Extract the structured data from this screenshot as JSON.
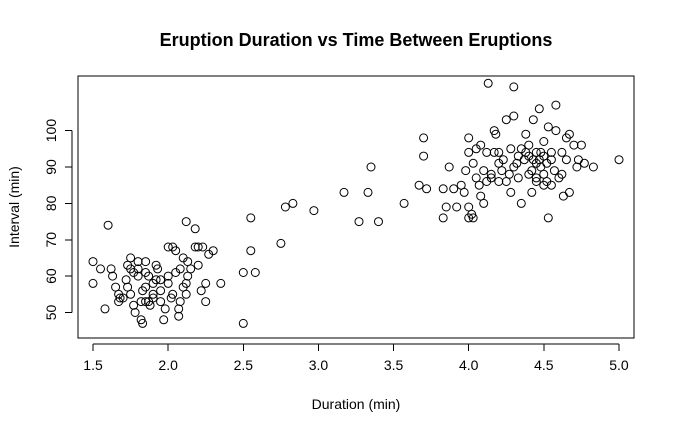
{
  "chart_data": {
    "type": "scatter",
    "title": "Eruption Duration vs Time Between Eruptions",
    "xlabel": "Duration (min)",
    "ylabel": "Interval (min)",
    "xlim": [
      1.4,
      5.1
    ],
    "ylim": [
      43,
      115
    ],
    "x_ticks": [
      1.5,
      2.0,
      2.5,
      3.0,
      3.5,
      4.0,
      4.5,
      5.0
    ],
    "x_tick_labels": [
      "1.5",
      "2.0",
      "2.5",
      "3.0",
      "3.5",
      "4.0",
      "4.5",
      "5.0"
    ],
    "y_ticks": [
      50,
      60,
      70,
      80,
      90,
      100
    ],
    "y_tick_labels": [
      "50",
      "60",
      "70",
      "80",
      "90",
      "100"
    ],
    "grid": false,
    "legend": "none",
    "marker": "open-circle",
    "points": [
      [
        1.5,
        64
      ],
      [
        1.5,
        58
      ],
      [
        1.55,
        62
      ],
      [
        1.58,
        51
      ],
      [
        1.6,
        74
      ],
      [
        1.62,
        62
      ],
      [
        1.63,
        60
      ],
      [
        1.65,
        57
      ],
      [
        1.67,
        55
      ],
      [
        1.67,
        53
      ],
      [
        1.68,
        54
      ],
      [
        1.7,
        54
      ],
      [
        1.72,
        59
      ],
      [
        1.73,
        57
      ],
      [
        1.75,
        65
      ],
      [
        1.75,
        62
      ],
      [
        1.75,
        55
      ],
      [
        1.77,
        61
      ],
      [
        1.77,
        52
      ],
      [
        1.78,
        50
      ],
      [
        1.8,
        64
      ],
      [
        1.8,
        62
      ],
      [
        1.8,
        60
      ],
      [
        1.82,
        53
      ],
      [
        1.82,
        48
      ],
      [
        1.83,
        47
      ],
      [
        1.83,
        56
      ],
      [
        1.85,
        64
      ],
      [
        1.85,
        61
      ],
      [
        1.85,
        57
      ],
      [
        1.87,
        60
      ],
      [
        1.87,
        53
      ],
      [
        1.88,
        52
      ],
      [
        1.9,
        58
      ],
      [
        1.9,
        54
      ],
      [
        1.92,
        59
      ],
      [
        1.92,
        63
      ],
      [
        1.93,
        62
      ],
      [
        1.95,
        56
      ],
      [
        1.95,
        53
      ],
      [
        1.97,
        48
      ],
      [
        1.98,
        51
      ],
      [
        2.0,
        58
      ],
      [
        2.0,
        60
      ],
      [
        2.02,
        54
      ],
      [
        2.03,
        55
      ],
      [
        2.03,
        68
      ],
      [
        2.05,
        67
      ],
      [
        2.05,
        61
      ],
      [
        2.07,
        49
      ],
      [
        2.08,
        53
      ],
      [
        2.08,
        62
      ],
      [
        2.1,
        57
      ],
      [
        2.1,
        65
      ],
      [
        2.12,
        58
      ],
      [
        2.12,
        55
      ],
      [
        2.13,
        64
      ],
      [
        2.13,
        60
      ],
      [
        2.15,
        62
      ],
      [
        2.18,
        73
      ],
      [
        2.18,
        68
      ],
      [
        2.2,
        68
      ],
      [
        2.2,
        63
      ],
      [
        2.22,
        56
      ],
      [
        2.23,
        68
      ],
      [
        2.25,
        58
      ],
      [
        2.25,
        53
      ],
      [
        2.27,
        66
      ],
      [
        2.3,
        67
      ],
      [
        2.35,
        58
      ],
      [
        2.12,
        75
      ],
      [
        2.5,
        61
      ],
      [
        2.5,
        47
      ],
      [
        2.55,
        76
      ],
      [
        2.55,
        67
      ],
      [
        2.58,
        61
      ],
      [
        2.75,
        69
      ],
      [
        2.78,
        79
      ],
      [
        2.83,
        80
      ],
      [
        2.97,
        78
      ],
      [
        3.17,
        83
      ],
      [
        3.27,
        75
      ],
      [
        3.33,
        83
      ],
      [
        3.35,
        90
      ],
      [
        3.4,
        75
      ],
      [
        3.57,
        80
      ],
      [
        3.67,
        85
      ],
      [
        3.7,
        98
      ],
      [
        3.7,
        93
      ],
      [
        3.72,
        84
      ],
      [
        3.83,
        76
      ],
      [
        3.83,
        84
      ],
      [
        3.85,
        79
      ],
      [
        3.87,
        90
      ],
      [
        3.9,
        84
      ],
      [
        3.92,
        79
      ],
      [
        3.95,
        85
      ],
      [
        3.97,
        83
      ],
      [
        3.98,
        89
      ],
      [
        4.0,
        94
      ],
      [
        4.0,
        98
      ],
      [
        4.0,
        79
      ],
      [
        4.02,
        77
      ],
      [
        4.03,
        76
      ],
      [
        4.03,
        91
      ],
      [
        4.05,
        87
      ],
      [
        4.05,
        95
      ],
      [
        4.07,
        85
      ],
      [
        4.08,
        82
      ],
      [
        4.08,
        96
      ],
      [
        4.1,
        80
      ],
      [
        4.1,
        89
      ],
      [
        4.12,
        86
      ],
      [
        4.12,
        94
      ],
      [
        4.13,
        113
      ],
      [
        4.15,
        88
      ],
      [
        4.15,
        87
      ],
      [
        4.17,
        94
      ],
      [
        4.17,
        100
      ],
      [
        4.18,
        99
      ],
      [
        4.2,
        91
      ],
      [
        4.2,
        86
      ],
      [
        4.22,
        89
      ],
      [
        4.23,
        92
      ],
      [
        4.25,
        103
      ],
      [
        4.25,
        86
      ],
      [
        4.27,
        88
      ],
      [
        4.28,
        95
      ],
      [
        4.28,
        83
      ],
      [
        4.3,
        104
      ],
      [
        4.3,
        90
      ],
      [
        4.3,
        112
      ],
      [
        4.32,
        91
      ],
      [
        4.33,
        93
      ],
      [
        4.33,
        87
      ],
      [
        4.35,
        95
      ],
      [
        4.35,
        80
      ],
      [
        4.37,
        92
      ],
      [
        4.38,
        99
      ],
      [
        4.4,
        93
      ],
      [
        4.4,
        96
      ],
      [
        4.4,
        88
      ],
      [
        4.42,
        83
      ],
      [
        4.42,
        89
      ],
      [
        4.43,
        92
      ],
      [
        4.43,
        103
      ],
      [
        4.45,
        91
      ],
      [
        4.45,
        94
      ],
      [
        4.45,
        86
      ],
      [
        4.47,
        106
      ],
      [
        4.47,
        92
      ],
      [
        4.48,
        90
      ],
      [
        4.48,
        94
      ],
      [
        4.5,
        88
      ],
      [
        4.5,
        85
      ],
      [
        4.5,
        97
      ],
      [
        4.5,
        93
      ],
      [
        4.52,
        91
      ],
      [
        4.52,
        86
      ],
      [
        4.53,
        101
      ],
      [
        4.53,
        76
      ],
      [
        4.55,
        92
      ],
      [
        4.55,
        94
      ],
      [
        4.57,
        89
      ],
      [
        4.58,
        107
      ],
      [
        4.58,
        100
      ],
      [
        4.6,
        87
      ],
      [
        4.62,
        94
      ],
      [
        4.62,
        88
      ],
      [
        4.63,
        82
      ],
      [
        4.65,
        92
      ],
      [
        4.65,
        98
      ],
      [
        4.67,
        99
      ],
      [
        4.67,
        83
      ],
      [
        4.7,
        96
      ],
      [
        4.72,
        90
      ],
      [
        4.73,
        92
      ],
      [
        4.75,
        96
      ],
      [
        4.77,
        91
      ],
      [
        4.83,
        90
      ],
      [
        5.0,
        92
      ],
      [
        4.2,
        94
      ],
      [
        4.0,
        76
      ],
      [
        4.45,
        87
      ],
      [
        2.0,
        68
      ],
      [
        1.95,
        59
      ],
      [
        1.85,
        53
      ],
      [
        1.9,
        55
      ],
      [
        2.07,
        51
      ],
      [
        1.73,
        63
      ],
      [
        4.38,
        94
      ],
      [
        4.55,
        85
      ]
    ]
  }
}
